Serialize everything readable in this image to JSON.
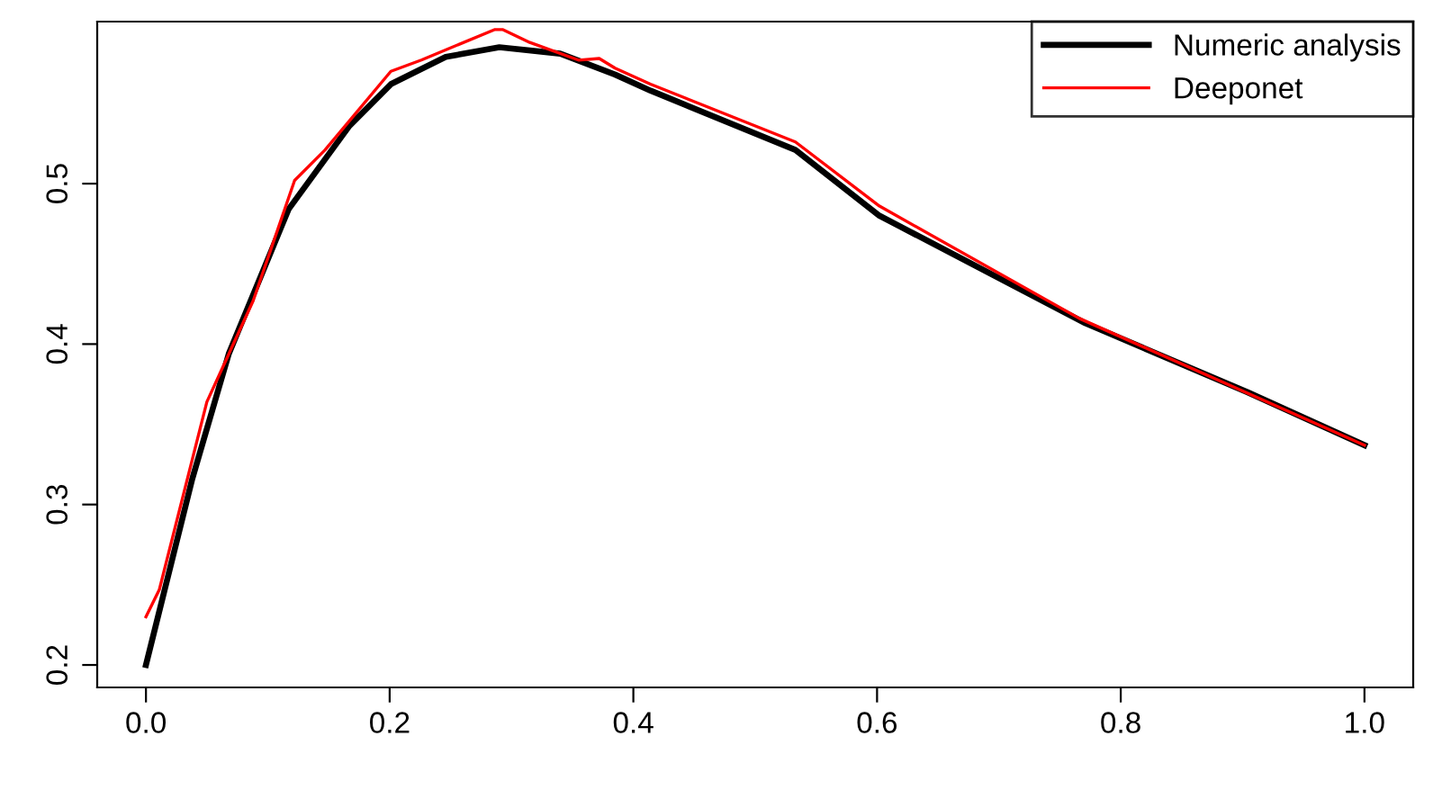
{
  "chart_data": {
    "type": "line",
    "xlim": [
      -0.04,
      1.04
    ],
    "ylim": [
      0.186,
      0.601
    ],
    "xticks": [
      {
        "value": 0,
        "label": "0.0"
      },
      0.2,
      0.4,
      0.6,
      0.8,
      {
        "value": 1,
        "label": "1.0"
      }
    ],
    "yticks": [
      0.2,
      0.3,
      0.4,
      0.5
    ],
    "grid": false,
    "legend": "top right",
    "marker": "none",
    "line_style": "solid",
    "series": [
      {
        "name": "Numeric analysis",
        "color": "#000000",
        "x": [
          0,
          0.038,
          0.068,
          0.117,
          0.167,
          0.201,
          0.246,
          0.29,
          0.34,
          0.385,
          0.414,
          0.533,
          0.602,
          0.771,
          0.904,
          1.0
        ],
        "values": [
          0.2,
          0.316,
          0.394,
          0.484,
          0.536,
          0.562,
          0.579,
          0.585,
          0.581,
          0.568,
          0.558,
          0.521,
          0.48,
          0.413,
          0.37,
          0.337
        ]
      },
      {
        "name": "Deeponet",
        "color": "#ff0000",
        "x": [
          0,
          0.011,
          0.05,
          0.088,
          0.122,
          0.147,
          0.201,
          0.226,
          0.286,
          0.293,
          0.315,
          0.355,
          0.372,
          0.385,
          0.414,
          0.533,
          0.602,
          0.766,
          1.0
        ],
        "values": [
          0.23,
          0.247,
          0.364,
          0.427,
          0.502,
          0.521,
          0.57,
          0.577,
          0.596,
          0.596,
          0.588,
          0.577,
          0.578,
          0.572,
          0.562,
          0.526,
          0.486,
          0.416,
          0.337
        ]
      }
    ]
  }
}
